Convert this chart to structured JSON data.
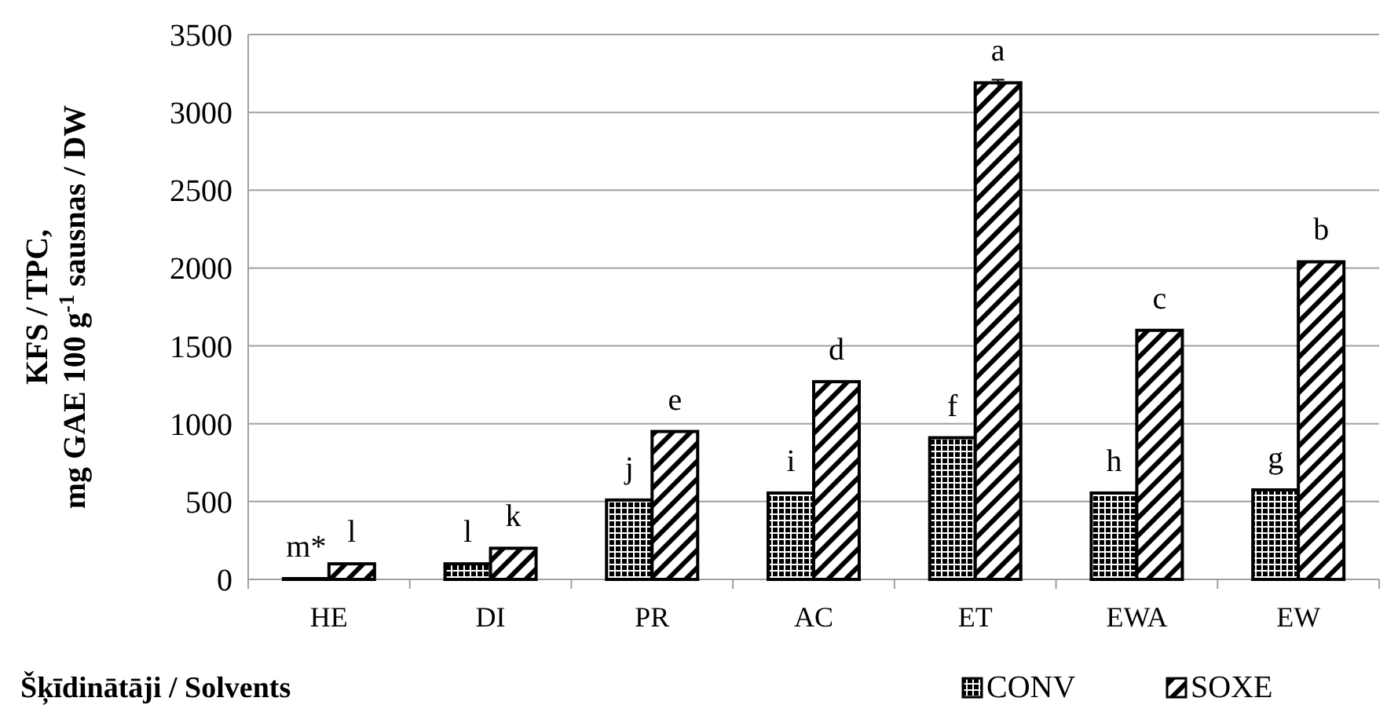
{
  "chart_data": {
    "type": "bar",
    "xlabel": "Šķīdinātāji  / Solvents",
    "ylabel": "KFS / TPC,\nmg GAE 100 g$^{-1}$ sausnas / DW",
    "categories": [
      "HE",
      "DI",
      "PR",
      "AC",
      "ET",
      "EWA",
      "EW"
    ],
    "series": [
      {
        "name": "CONV",
        "color": "#000000",
        "values": [
          5,
          100,
          510,
          555,
          910,
          555,
          575
        ]
      },
      {
        "name": "SOXE",
        "color": "#000000",
        "values": [
          100,
          200,
          950,
          1270,
          3190,
          1600,
          2040
        ],
        "errors": [
          null,
          null,
          null,
          null,
          20,
          null,
          null
        ]
      }
    ],
    "ylim": [
      0,
      3500
    ],
    "yticks": [
      0,
      500,
      1000,
      1500,
      2000,
      2500,
      3000,
      3500
    ],
    "grid": "y",
    "legend": "bottom right",
    "annotations": [
      {
        "text": "m*",
        "x": "HE",
        "y": 5
      },
      {
        "text": "l",
        "x": "HE",
        "y": 100
      },
      {
        "text": "l",
        "x": "DI",
        "y": 100
      },
      {
        "text": "k",
        "x": "DI",
        "y": 200
      },
      {
        "text": "j",
        "x": "PR",
        "y": 510
      },
      {
        "text": "e",
        "x": "PR",
        "y": 950
      },
      {
        "text": "i",
        "x": "AC",
        "y": 555
      },
      {
        "text": "d",
        "x": "AC",
        "y": 1270
      },
      {
        "text": "f",
        "x": "ET",
        "y": 910
      },
      {
        "text": "a",
        "x": "ET",
        "y": 3190
      },
      {
        "text": "h",
        "x": "EWA",
        "y": 555
      },
      {
        "text": "c",
        "x": "EWA",
        "y": 1600
      },
      {
        "text": "g",
        "x": "EW",
        "y": 575
      },
      {
        "text": "b",
        "x": "EW",
        "y": 2040
      }
    ]
  }
}
